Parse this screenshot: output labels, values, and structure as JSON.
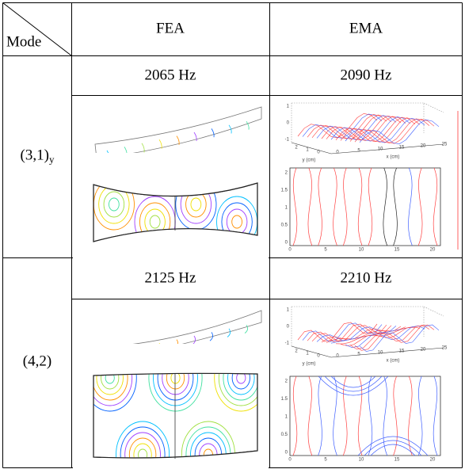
{
  "table": {
    "header": {
      "corner": "Mode",
      "columns": [
        "FEA",
        "EMA"
      ]
    },
    "rows": [
      {
        "mode": {
          "label": "(3,1)",
          "subscript": "y"
        },
        "fea_frequency": "2065 Hz",
        "ema_frequency": "2090 Hz",
        "ema_plot": {
          "surface_z_ticks": [
            "1",
            "0",
            "-1"
          ],
          "surface_y_ticks": [
            "2",
            "1",
            "0"
          ],
          "surface_x_ticks": [
            "0",
            "5",
            "10",
            "15",
            "20",
            "25"
          ],
          "surface_y_label": "y (cm)",
          "surface_x_label": "x (cm)",
          "contour_y_ticks": [
            "2",
            "1.5",
            "1",
            "0.5",
            "0"
          ],
          "contour_x_ticks": [
            "0",
            "5",
            "10",
            "15",
            "20"
          ]
        }
      },
      {
        "mode": {
          "label": "(4,2)"
        },
        "fea_frequency": "2125 Hz",
        "ema_frequency": "2210 Hz",
        "ema_plot": {
          "surface_z_ticks": [
            "1",
            "0",
            "-1"
          ],
          "surface_y_ticks": [
            "2",
            "1",
            "0"
          ],
          "surface_x_ticks": [
            "0",
            "5",
            "10",
            "15",
            "20",
            "25"
          ],
          "surface_y_label": "y (cm)",
          "surface_x_label": "x (cm)",
          "contour_y_ticks": [
            "2",
            "1.5",
            "1",
            "0.5",
            "0"
          ],
          "contour_x_ticks": [
            "0",
            "5",
            "10",
            "15",
            "20"
          ]
        }
      }
    ]
  }
}
